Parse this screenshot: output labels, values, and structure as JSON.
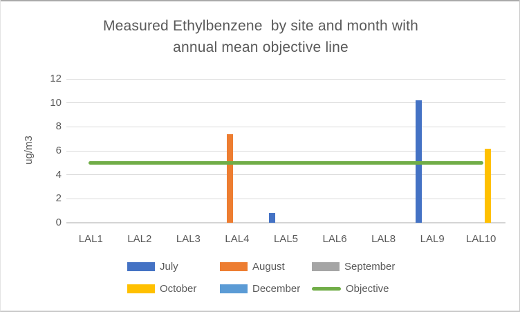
{
  "chart_data": {
    "type": "bar",
    "title": "Measured Ethylbenzene  by site and month with annual mean objective line",
    "title_lines": [
      "Measured Ethylbenzene  by site and month with",
      "annual mean objective line"
    ],
    "xlabel": "",
    "ylabel": "ug/m3",
    "ylim": [
      0,
      12
    ],
    "ytick_step": 2,
    "grid": true,
    "legend_position": "bottom",
    "categories": [
      "LAL1",
      "LAL2",
      "LAL3",
      "LAL4",
      "LAL5",
      "LAL6",
      "LAL8",
      "LAL9",
      "LAL10"
    ],
    "series": [
      {
        "name": "July",
        "color": "#4472C4",
        "values": [
          null,
          null,
          null,
          null,
          0.8,
          null,
          null,
          10.2,
          null
        ]
      },
      {
        "name": "August",
        "color": "#ED7D31",
        "values": [
          null,
          null,
          null,
          7.4,
          null,
          null,
          null,
          null,
          null
        ]
      },
      {
        "name": "September",
        "color": "#A5A5A5",
        "values": [
          null,
          null,
          null,
          null,
          null,
          null,
          null,
          null,
          null
        ]
      },
      {
        "name": "October",
        "color": "#FFC000",
        "values": [
          null,
          null,
          null,
          null,
          null,
          null,
          null,
          null,
          6.2
        ]
      },
      {
        "name": "December",
        "color": "#5B9BD5",
        "values": [
          null,
          null,
          null,
          null,
          null,
          null,
          null,
          null,
          null
        ]
      }
    ],
    "objective_line": {
      "name": "Objective",
      "value": 5,
      "color": "#70AD47"
    },
    "legend_rows": [
      [
        "July",
        "August",
        "September"
      ],
      [
        "October",
        "December",
        "Objective"
      ]
    ],
    "colors": {
      "gridline": "#d9d9d9",
      "text": "#595959"
    }
  }
}
